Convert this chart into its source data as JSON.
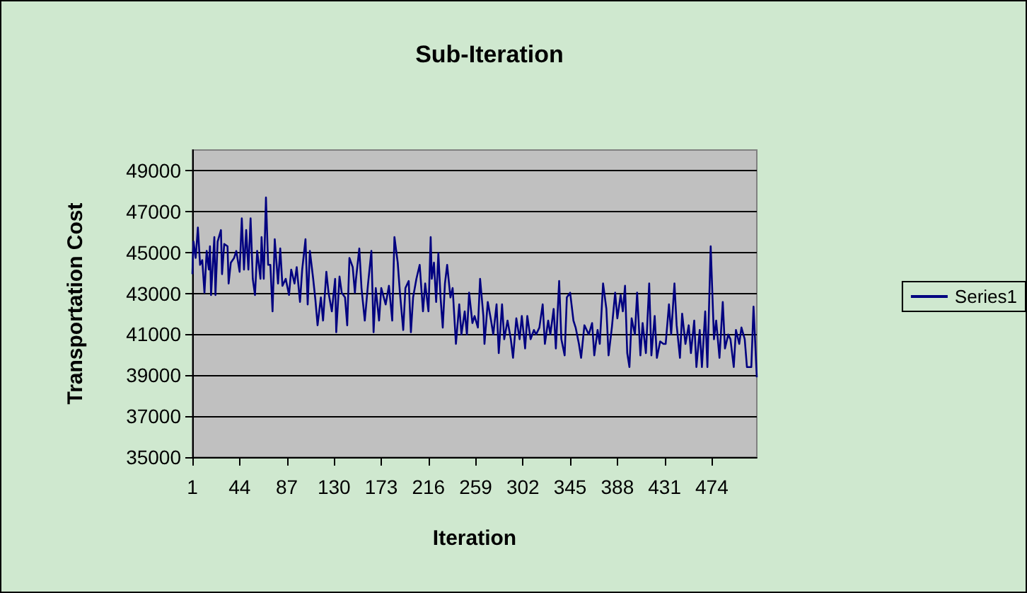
{
  "chart_data": {
    "type": "line",
    "title": "Sub-Iteration",
    "xlabel": "Iteration",
    "ylabel": "Transportation Cost",
    "x": [
      1,
      2,
      4,
      6,
      8,
      10,
      12,
      14,
      16,
      17,
      18,
      21,
      22,
      24,
      27,
      28,
      30,
      33,
      34,
      36,
      39,
      41,
      44,
      46,
      48,
      50,
      52,
      54,
      56,
      58,
      60,
      63,
      64,
      66,
      68,
      70,
      72,
      74,
      76,
      79,
      81,
      83,
      86,
      89,
      91,
      94,
      96,
      99,
      101,
      104,
      106,
      108,
      111,
      113,
      115,
      118,
      120,
      123,
      125,
      128,
      131,
      132,
      135,
      137,
      140,
      142,
      144,
      147,
      149,
      150,
      153,
      155,
      158,
      161,
      164,
      166,
      168,
      171,
      173,
      177,
      180,
      183,
      185,
      188,
      190,
      193,
      195,
      198,
      200,
      202,
      205,
      208,
      211,
      213,
      216,
      218,
      219,
      221,
      223,
      225,
      227,
      229,
      231,
      233,
      236,
      238,
      241,
      244,
      246,
      249,
      251,
      253,
      256,
      258,
      261,
      263,
      266,
      267,
      270,
      273,
      275,
      278,
      280,
      283,
      285,
      288,
      291,
      293,
      296,
      299,
      301,
      304,
      306,
      309,
      312,
      314,
      317,
      320,
      322,
      325,
      327,
      330,
      332,
      335,
      337,
      340,
      342,
      345,
      348,
      350,
      353,
      355,
      358,
      362,
      365,
      367,
      370,
      372,
      375,
      378,
      380,
      383,
      386,
      388,
      391,
      393,
      395,
      397,
      399,
      401,
      404,
      406,
      409,
      411,
      414,
      417,
      419,
      422,
      424,
      427,
      430,
      432,
      435,
      437,
      440,
      442,
      445,
      447,
      450,
      453,
      455,
      458,
      460,
      463,
      465,
      468,
      470,
      473,
      476,
      478,
      481,
      484,
      486,
      489,
      491,
      494,
      496,
      499,
      501,
      504,
      506,
      510,
      512,
      515
    ],
    "series": [
      {
        "name": "Series1",
        "color": "#000080",
        "values": [
          43940,
          45530,
          44730,
          46210,
          44390,
          44620,
          43030,
          45070,
          44160,
          45300,
          42920,
          45750,
          42920,
          45530,
          46090,
          43940,
          45410,
          45300,
          43480,
          44500,
          44730,
          45070,
          44050,
          46660,
          44160,
          46090,
          44160,
          46660,
          43710,
          42920,
          45070,
          43710,
          45750,
          43710,
          47680,
          44390,
          44390,
          42120,
          45640,
          43480,
          45190,
          43370,
          43710,
          42920,
          44160,
          43480,
          44280,
          42580,
          44160,
          45640,
          42460,
          45070,
          43710,
          42690,
          41440,
          42800,
          41670,
          44050,
          43030,
          42120,
          43710,
          41100,
          43820,
          43030,
          42800,
          41440,
          44730,
          44280,
          43030,
          43710,
          45190,
          43260,
          41670,
          43480,
          45070,
          41100,
          43260,
          41670,
          43260,
          42460,
          43370,
          41670,
          45750,
          44500,
          43030,
          41210,
          43260,
          43600,
          41100,
          42800,
          43710,
          44390,
          42120,
          43480,
          42120,
          45750,
          43710,
          44500,
          42580,
          44960,
          42800,
          41330,
          43480,
          44390,
          42800,
          43260,
          40530,
          42460,
          40990,
          42120,
          40990,
          43030,
          41550,
          41890,
          41330,
          43710,
          41890,
          40530,
          42580,
          41670,
          40990,
          42460,
          40080,
          42460,
          40760,
          41670,
          40760,
          39850,
          41780,
          40760,
          41890,
          40310,
          41890,
          40760,
          41210,
          40990,
          41330,
          42460,
          40530,
          41670,
          40990,
          42240,
          40310,
          43600,
          40760,
          39970,
          42800,
          43030,
          41670,
          41330,
          40530,
          39850,
          41440,
          40990,
          41550,
          39970,
          41210,
          40530,
          43480,
          42240,
          39970,
          41330,
          43030,
          41780,
          42920,
          42120,
          43370,
          40080,
          39400,
          41780,
          40990,
          43030,
          39970,
          41550,
          40080,
          43480,
          39970,
          41890,
          39850,
          40650,
          40530,
          40530,
          42460,
          40990,
          43480,
          41440,
          39850,
          42010,
          40530,
          41440,
          40080,
          41670,
          39400,
          41210,
          39400,
          42120,
          39400,
          45300,
          40760,
          41670,
          39850,
          42580,
          40310,
          40990,
          40760,
          39400,
          41210,
          40530,
          41330,
          40760,
          39400,
          39400,
          42350,
          38900
        ]
      }
    ],
    "xlim": [
      1,
      515
    ],
    "xticks": [
      1,
      44,
      87,
      130,
      173,
      216,
      259,
      302,
      345,
      388,
      431,
      474
    ],
    "ylim": [
      35000,
      50000
    ],
    "yticks": [
      35000,
      37000,
      39000,
      41000,
      43000,
      45000,
      47000,
      49000
    ],
    "grid": "y",
    "legend": "right",
    "marker": "none",
    "line_style": "solid"
  }
}
